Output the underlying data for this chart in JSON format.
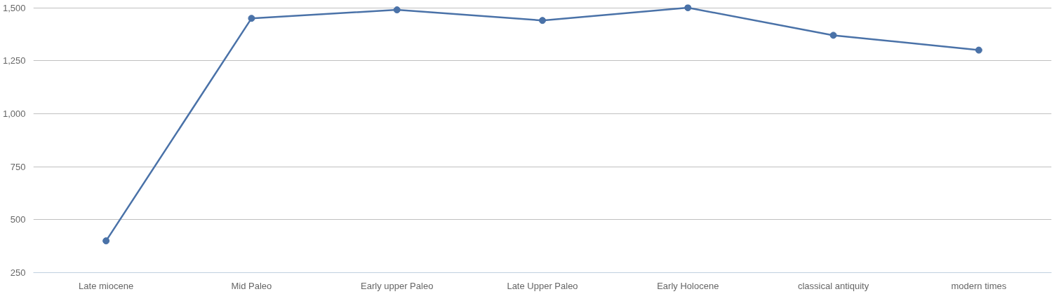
{
  "chart_data": {
    "type": "line",
    "categories": [
      "Late miocene",
      "Mid Paleo",
      "Early upper Paleo",
      "Late Upper Paleo",
      "Early Holocene",
      "classical antiquity",
      "modern times"
    ],
    "series": [
      {
        "color": "#4a72a8",
        "values": [
          400,
          1450,
          1490,
          1440,
          1500,
          1370,
          1300
        ]
      }
    ],
    "ylim": [
      250,
      1500
    ],
    "yticks": [
      {
        "value": 250,
        "label": "250"
      },
      {
        "value": 500,
        "label": "500"
      },
      {
        "value": 750,
        "label": "750"
      },
      {
        "value": 1000,
        "label": "1,000"
      },
      {
        "value": 1250,
        "label": "1,250"
      },
      {
        "value": 1500,
        "label": "1,500"
      }
    ],
    "grid": "y",
    "marker": "circle",
    "line_style": "solid"
  }
}
